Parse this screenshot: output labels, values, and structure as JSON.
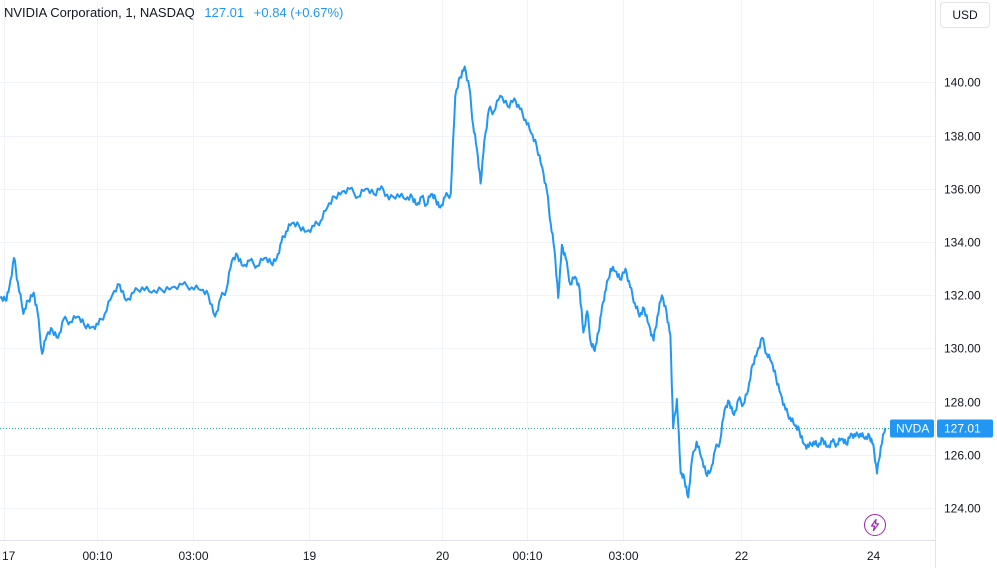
{
  "header": {
    "symbol_line": "NVIDIA Corporation, 1, NASDAQ",
    "last_price": "127.01",
    "change": "+0.84 (+0.67%)"
  },
  "currency_button": "USD",
  "colors": {
    "line": "#2196f3",
    "last_price_line": "#26a69a",
    "grid": "#f0f3fa",
    "axis_text": "#131722",
    "bolt": "#9c27b0"
  },
  "icons": {
    "flash": "lightning-bolt-icon"
  },
  "chart_data": {
    "type": "line",
    "title": "NVIDIA Corporation, 1, NASDAQ",
    "grid": true,
    "y_axis": {
      "position": "right",
      "range": [
        122.8,
        143.1
      ],
      "ticks": [
        124,
        126,
        128,
        130,
        132,
        134,
        136,
        138,
        140
      ],
      "tick_labels": [
        "124.00",
        "126.00",
        "128.00",
        "130.00",
        "132.00",
        "134.00",
        "136.00",
        "138.00",
        "140.00"
      ]
    },
    "x_axis": {
      "range": [
        0,
        100
      ],
      "ticks": [
        0.4,
        10.4,
        20.6,
        33.1,
        47.3,
        56.4,
        66.6,
        79.3,
        93.4
      ],
      "tick_labels": [
        "17",
        "00:10",
        "03:00",
        "19",
        "20",
        "00:10",
        "03:00",
        "22",
        "24"
      ]
    },
    "series": [
      {
        "symbol_tag": "NVDA",
        "last_value": 127.01,
        "last_value_label": "127.01",
        "points": [
          [
            0.0,
            131.9
          ],
          [
            0.6,
            131.8
          ],
          [
            1.0,
            132.3
          ],
          [
            1.5,
            133.4
          ],
          [
            1.9,
            132.5
          ],
          [
            2.5,
            131.3
          ],
          [
            3.0,
            131.8
          ],
          [
            3.6,
            132.1
          ],
          [
            4.0,
            131.4
          ],
          [
            4.5,
            129.8
          ],
          [
            5.0,
            130.5
          ],
          [
            5.6,
            130.7
          ],
          [
            6.2,
            130.4
          ],
          [
            6.8,
            131.1
          ],
          [
            7.5,
            131.0
          ],
          [
            8.3,
            131.2
          ],
          [
            9.0,
            130.9
          ],
          [
            9.8,
            130.8
          ],
          [
            10.5,
            130.9
          ],
          [
            11.2,
            131.3
          ],
          [
            12.0,
            132.0
          ],
          [
            12.8,
            132.4
          ],
          [
            13.5,
            131.8
          ],
          [
            14.3,
            132.1
          ],
          [
            15.2,
            132.3
          ],
          [
            16.2,
            132.1
          ],
          [
            17.3,
            132.2
          ],
          [
            18.4,
            132.3
          ],
          [
            19.5,
            132.4
          ],
          [
            20.5,
            132.3
          ],
          [
            21.5,
            132.2
          ],
          [
            22.3,
            132.0
          ],
          [
            23.0,
            131.2
          ],
          [
            23.6,
            131.9
          ],
          [
            24.2,
            132.2
          ],
          [
            24.8,
            133.3
          ],
          [
            25.4,
            133.5
          ],
          [
            26.0,
            133.1
          ],
          [
            26.7,
            133.3
          ],
          [
            27.5,
            133.1
          ],
          [
            28.3,
            133.4
          ],
          [
            29.0,
            133.2
          ],
          [
            29.6,
            133.4
          ],
          [
            30.1,
            134.0
          ],
          [
            30.6,
            134.4
          ],
          [
            31.2,
            134.7
          ],
          [
            32.0,
            134.6
          ],
          [
            32.8,
            134.4
          ],
          [
            33.6,
            134.6
          ],
          [
            34.3,
            134.8
          ],
          [
            35.0,
            135.3
          ],
          [
            35.8,
            135.7
          ],
          [
            36.6,
            135.9
          ],
          [
            37.4,
            136.0
          ],
          [
            38.3,
            135.7
          ],
          [
            39.1,
            136.0
          ],
          [
            40.0,
            135.8
          ],
          [
            40.8,
            136.1
          ],
          [
            41.6,
            135.6
          ],
          [
            42.5,
            135.8
          ],
          [
            43.4,
            135.6
          ],
          [
            44.1,
            135.7
          ],
          [
            44.6,
            135.4
          ],
          [
            45.1,
            135.7
          ],
          [
            45.6,
            135.4
          ],
          [
            46.1,
            135.8
          ],
          [
            46.6,
            135.6
          ],
          [
            47.1,
            135.3
          ],
          [
            47.6,
            135.7
          ],
          [
            48.2,
            135.8
          ],
          [
            48.7,
            139.5
          ],
          [
            49.2,
            140.2
          ],
          [
            49.7,
            140.6
          ],
          [
            50.2,
            139.8
          ],
          [
            50.6,
            138.4
          ],
          [
            51.0,
            137.5
          ],
          [
            51.4,
            136.2
          ],
          [
            51.8,
            137.8
          ],
          [
            52.3,
            139.0
          ],
          [
            52.8,
            138.9
          ],
          [
            53.5,
            139.5
          ],
          [
            54.3,
            139.1
          ],
          [
            55.0,
            139.4
          ],
          [
            55.6,
            139.0
          ],
          [
            56.2,
            138.6
          ],
          [
            56.8,
            138.1
          ],
          [
            57.4,
            137.6
          ],
          [
            58.0,
            136.8
          ],
          [
            58.5,
            135.9
          ],
          [
            58.9,
            134.7
          ],
          [
            59.3,
            133.7
          ],
          [
            59.7,
            131.9
          ],
          [
            60.1,
            133.9
          ],
          [
            60.5,
            133.4
          ],
          [
            61.0,
            132.4
          ],
          [
            61.5,
            132.7
          ],
          [
            62.0,
            132.2
          ],
          [
            62.4,
            130.6
          ],
          [
            62.8,
            131.4
          ],
          [
            63.2,
            130.2
          ],
          [
            63.6,
            129.9
          ],
          [
            64.0,
            130.6
          ],
          [
            64.4,
            131.6
          ],
          [
            64.8,
            132.2
          ],
          [
            65.3,
            133.0
          ],
          [
            65.8,
            132.9
          ],
          [
            66.3,
            132.6
          ],
          [
            66.9,
            133.0
          ],
          [
            67.4,
            132.3
          ],
          [
            67.9,
            131.7
          ],
          [
            68.4,
            131.2
          ],
          [
            68.9,
            131.5
          ],
          [
            69.4,
            130.9
          ],
          [
            69.9,
            130.3
          ],
          [
            70.3,
            131.2
          ],
          [
            70.8,
            132.0
          ],
          [
            71.3,
            131.3
          ],
          [
            71.7,
            130.5
          ],
          [
            72.0,
            127.0
          ],
          [
            72.4,
            128.1
          ],
          [
            72.8,
            125.3
          ],
          [
            73.2,
            125.1
          ],
          [
            73.6,
            124.4
          ],
          [
            74.0,
            125.8
          ],
          [
            74.5,
            126.5
          ],
          [
            75.0,
            125.9
          ],
          [
            75.5,
            125.3
          ],
          [
            76.0,
            125.4
          ],
          [
            76.5,
            126.2
          ],
          [
            77.0,
            126.5
          ],
          [
            77.5,
            127.7
          ],
          [
            78.0,
            128.0
          ],
          [
            78.5,
            127.5
          ],
          [
            79.0,
            128.1
          ],
          [
            79.5,
            127.9
          ],
          [
            80.0,
            128.4
          ],
          [
            80.5,
            129.4
          ],
          [
            81.0,
            129.9
          ],
          [
            81.5,
            130.4
          ],
          [
            82.0,
            129.8
          ],
          [
            82.5,
            129.5
          ],
          [
            83.0,
            128.9
          ],
          [
            83.5,
            128.3
          ],
          [
            84.0,
            127.7
          ],
          [
            84.5,
            127.4
          ],
          [
            85.0,
            127.1
          ],
          [
            85.5,
            126.9
          ],
          [
            86.0,
            126.4
          ],
          [
            86.5,
            126.3
          ],
          [
            87.0,
            126.5
          ],
          [
            87.5,
            126.3
          ],
          [
            88.0,
            126.6
          ],
          [
            88.5,
            126.3
          ],
          [
            89.0,
            126.5
          ],
          [
            89.5,
            126.4
          ],
          [
            90.0,
            126.6
          ],
          [
            90.5,
            126.4
          ],
          [
            91.0,
            126.8
          ],
          [
            91.5,
            126.7
          ],
          [
            92.0,
            126.8
          ],
          [
            92.5,
            126.6
          ],
          [
            93.0,
            126.7
          ],
          [
            93.4,
            126.4
          ],
          [
            93.8,
            125.3
          ],
          [
            94.2,
            126.3
          ],
          [
            94.7,
            127.01
          ]
        ]
      }
    ]
  }
}
